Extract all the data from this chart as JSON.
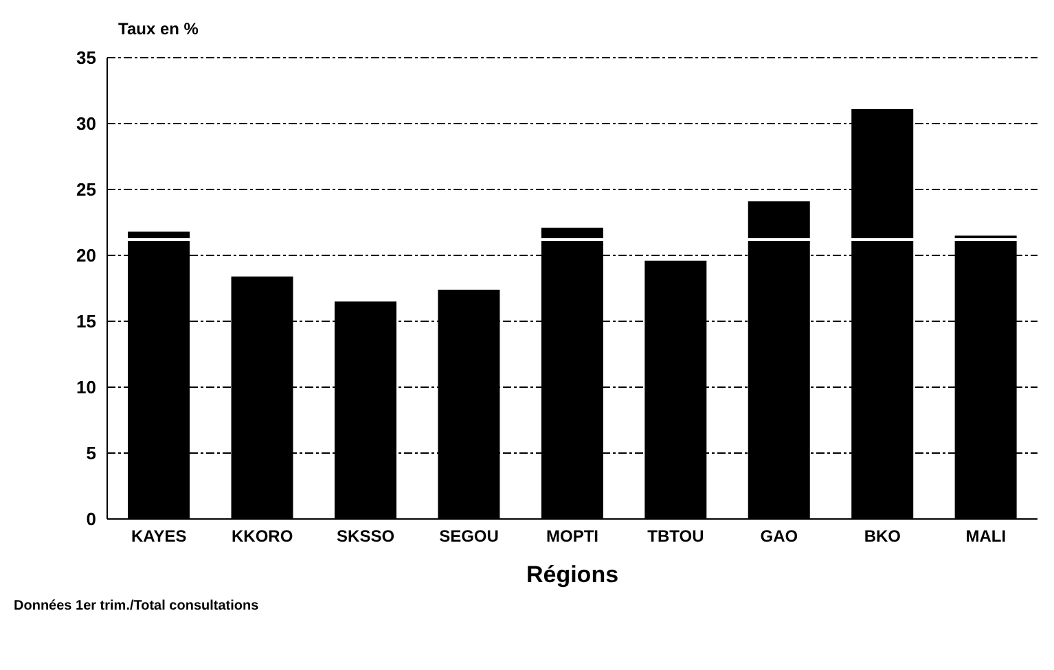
{
  "chart_data": {
    "type": "bar",
    "ylabel": "Taux en %",
    "xlabel": "Régions",
    "categories": [
      "KAYES",
      "KKORO",
      "SKSSO",
      "SEGOU",
      "MOPTI",
      "TBTOU",
      "GAO",
      "BKO",
      "MALI"
    ],
    "values": [
      21.8,
      18.4,
      16.5,
      17.4,
      22.1,
      19.6,
      24.1,
      31.1,
      21.5
    ],
    "color": "#000000",
    "ylim": [
      0,
      35
    ],
    "yticks": [
      0,
      5,
      10,
      15,
      20,
      25,
      30,
      35
    ],
    "grid": "y",
    "ref_lines": [
      {
        "axis": "y",
        "value": 21.2,
        "color": "#ffffff"
      }
    ],
    "annotations": [
      "Données 1er trim./Total consultations"
    ]
  }
}
